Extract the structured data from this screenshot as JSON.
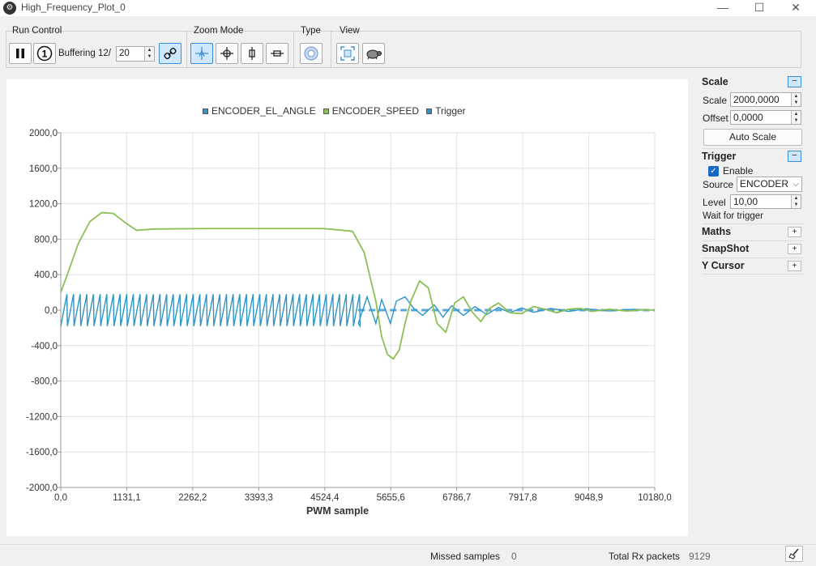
{
  "window": {
    "title": "High_Frequency_Plot_0",
    "minimize": "—",
    "maximize": "☐",
    "close": "✕"
  },
  "toolbar": {
    "run_control": "Run Control",
    "buffering_label": "Buffering 12/",
    "buffering_value": "20",
    "zoom_mode": "Zoom Mode",
    "type": "Type",
    "view": "View"
  },
  "legend": [
    "ENCODER_EL_ANGLE",
    "ENCODER_SPEED",
    "Trigger"
  ],
  "chart_data": {
    "type": "line",
    "xlabel": "PWM sample",
    "xlim": [
      0,
      10180
    ],
    "ylim": [
      -2000,
      2000
    ],
    "xticks": [
      "0,0",
      "1131,1",
      "2262,2",
      "3393,3",
      "4524,4",
      "5655,6",
      "6786,7",
      "7917,8",
      "9048,9",
      "10180,0"
    ],
    "yticks": [
      "2000,0",
      "1600,0",
      "1200,0",
      "800,0",
      "400,0",
      "0,0",
      "-400,0",
      "-800,0",
      "-1200,0",
      "-1600,0",
      "-2000,0"
    ],
    "grid": true,
    "legend_position": "top-center",
    "series": [
      {
        "name": "ENCODER_EL_ANGLE",
        "color": "#2d95c8",
        "description_x_end": 5100,
        "amplitude": 180,
        "period": 114
      },
      {
        "name": "ENCODER_SPEED",
        "color": "#8cbf55",
        "x": [
          0,
          100,
          300,
          500,
          700,
          900,
          1100,
          1300,
          1600,
          2500,
          3500,
          4500,
          5000,
          5200,
          5400,
          5500,
          5600,
          5700,
          5800,
          5900,
          6000,
          6150,
          6300,
          6450,
          6600,
          6750,
          6900,
          7050,
          7200,
          7350,
          7500,
          7700,
          7900,
          8100,
          8300,
          8500,
          8700,
          8900,
          9100,
          9400,
          9700,
          10000,
          10180
        ],
        "y": [
          200,
          380,
          750,
          1000,
          1100,
          1090,
          990,
          900,
          915,
          920,
          920,
          920,
          890,
          650,
          100,
          -300,
          -500,
          -550,
          -450,
          -150,
          100,
          330,
          250,
          -150,
          -250,
          80,
          150,
          -20,
          -130,
          20,
          80,
          -30,
          -40,
          40,
          10,
          -30,
          10,
          20,
          -15,
          10,
          -10,
          5,
          0
        ]
      },
      {
        "name": "Trigger",
        "color": "#5aa8d8",
        "value": 0,
        "dashed_from_x": 5100
      }
    ]
  },
  "side": {
    "scale_title": "Scale",
    "scale_label": "Scale",
    "scale_value": "2000,0000",
    "offset_label": "Offset",
    "offset_value": "0,0000",
    "auto_scale": "Auto Scale",
    "trigger_title": "Trigger",
    "enable_label": "Enable",
    "source_label": "Source",
    "source_value": "ENCODER",
    "level_label": "Level",
    "level_value": "10,00",
    "wait_text": "Wait for trigger",
    "maths": "Maths",
    "snapshot": "SnapShot",
    "ycursor": "Y Cursor"
  },
  "status": {
    "missed_label": "Missed samples",
    "missed_value": "0",
    "rx_label": "Total Rx packets",
    "rx_value": "9129"
  }
}
